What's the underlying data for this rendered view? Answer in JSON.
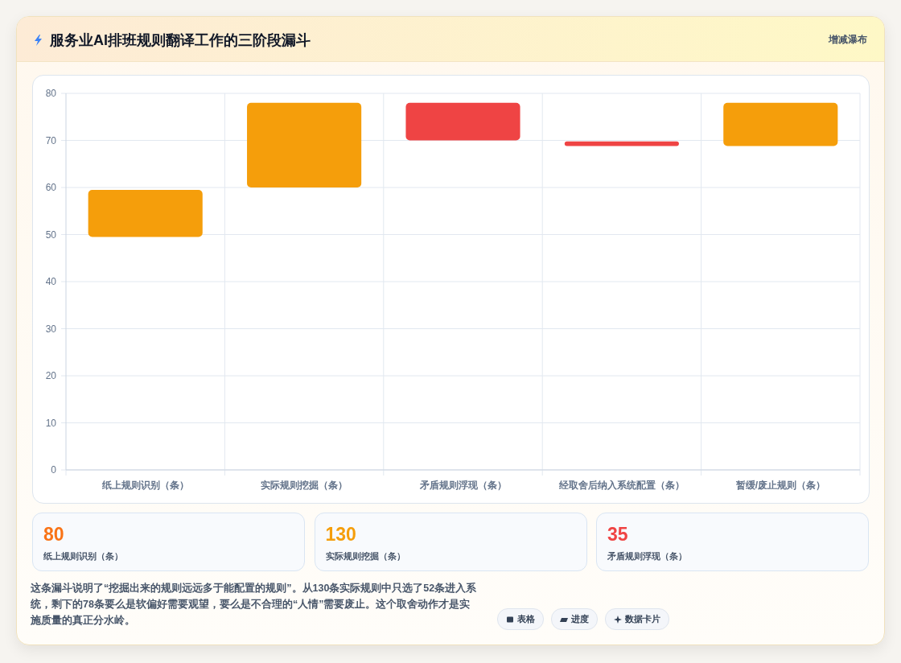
{
  "chart_data": [
    {
      "type": "bar",
      "title": "服务业AI排班规则翻译工作的三阶段漏斗",
      "subtitle": "增减瀑布",
      "categories": [
        "纸上规则识别（条）",
        "实际规则挖掘（条）",
        "矛盾规则浮现（条）",
        "经取舍后纳入系统配置（条）",
        "暂缓/废止规则（条）"
      ],
      "values": [
        10,
        18,
        8,
        1,
        9.2
      ],
      "base": [
        49.5,
        60,
        70,
        68.8,
        68.8
      ],
      "colors": [
        "#f59e0b",
        "#f59e0b",
        "#ef4444",
        "#ef4444",
        "#f59e0b"
      ],
      "ylim": [
        0,
        80
      ],
      "yticks": [
        0,
        10,
        20,
        30,
        40,
        50,
        60,
        70,
        80
      ],
      "grid": true,
      "annotations": [
        "这条漏斗说明了“挖掘出来的规则远远多于能配置的规则”。从130条实际规则中只选了52条进入系统，剩下的78条要么是软偏好需要观望，要么是不合理的“人情”需要废止。这个取舍动作才是实施质量的真正分水岭。",
        "表格",
        "进度",
        "数据卡片"
      ]
    },
    {
      "type": "other",
      "annotations": [
        "80",
        "纸上规则识别（条）",
        "130",
        "实际规则挖掘（条）",
        "35",
        "矛盾规则浮现（条）"
      ]
    }
  ]
}
